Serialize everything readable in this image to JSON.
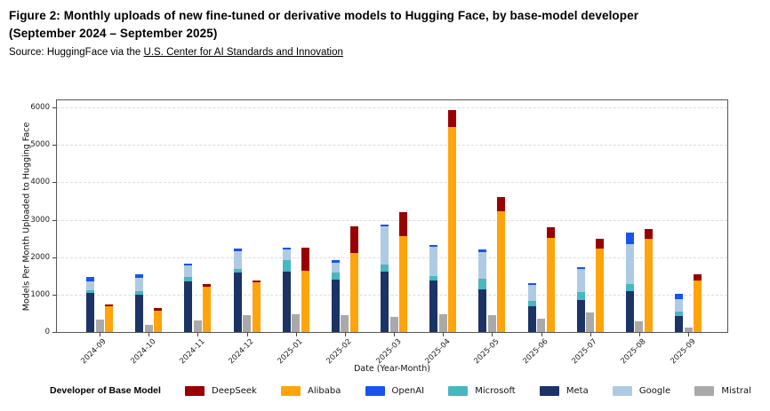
{
  "header": {
    "title_line1": "Figure 2: Monthly uploads of new fine-tuned or derivative models to Hugging Face, by base-model developer",
    "title_line2": "(September 2024 – September 2025)",
    "source_prefix": "Source: HuggingFace via the ",
    "source_link": "U.S. Center for AI Standards and Innovation"
  },
  "chart_data": {
    "type": "bar",
    "title": "",
    "xlabel": "Date (Year-Month)",
    "ylabel": "Models Per Month Uploaded to Hugging Face",
    "ylim": [
      0,
      6190
    ],
    "yticks": [
      0,
      1000,
      2000,
      3000,
      4000,
      5000,
      6000
    ],
    "grid": "horizontal-dashed",
    "legend_position": "bottom",
    "legend_title": "Developer of Base Model",
    "legend_order": [
      "DeepSeek",
      "Alibaba",
      "OpenAI",
      "Microsoft",
      "Meta",
      "Google",
      "Mistral"
    ],
    "colors": {
      "DeepSeek": "#990000",
      "Alibaba": "#FFA40A",
      "OpenAI": "#1A53EC",
      "Microsoft": "#48B7C0",
      "Meta": "#1C3365",
      "Google": "#AFCBE4",
      "Mistral": "#A9A9A9"
    },
    "categories": [
      "2024-09",
      "2024-10",
      "2024-11",
      "2024-12",
      "2025-01",
      "2025-02",
      "2025-03",
      "2025-04",
      "2025-05",
      "2025-06",
      "2025-07",
      "2025-08",
      "2025-09"
    ],
    "bar_groups": [
      {
        "name": "stack-meta-ms-google-openai",
        "stack": [
          "Meta",
          "Microsoft",
          "Google",
          "OpenAI"
        ]
      },
      {
        "name": "bar-mistral",
        "stack": [
          "Mistral"
        ]
      },
      {
        "name": "stack-alibaba-deepseek",
        "stack": [
          "Alibaba",
          "DeepSeek"
        ]
      }
    ],
    "series": {
      "Meta": [
        1040,
        1000,
        1360,
        1590,
        1610,
        1410,
        1610,
        1380,
        1140,
        700,
        850,
        1080,
        430
      ],
      "Microsoft": [
        80,
        100,
        110,
        90,
        300,
        170,
        200,
        110,
        280,
        130,
        210,
        190,
        120
      ],
      "Google": [
        240,
        350,
        300,
        490,
        300,
        280,
        1010,
        780,
        720,
        420,
        620,
        1070,
        330
      ],
      "OpenAI": [
        100,
        100,
        60,
        55,
        50,
        55,
        60,
        60,
        55,
        60,
        50,
        320,
        130
      ],
      "Mistral": [
        330,
        190,
        310,
        450,
        470,
        460,
        410,
        470,
        450,
        360,
        520,
        280,
        130
      ],
      "Alibaba": [
        680,
        570,
        1220,
        1330,
        1640,
        2100,
        2550,
        5490,
        3230,
        2520,
        2220,
        2500,
        1380
      ],
      "DeepSeek": [
        55,
        70,
        55,
        50,
        620,
        720,
        660,
        430,
        370,
        280,
        260,
        240,
        160
      ]
    }
  }
}
